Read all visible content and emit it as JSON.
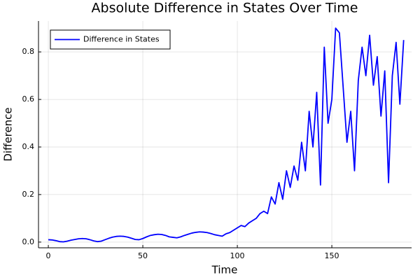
{
  "chart_data": {
    "type": "line",
    "title": "Absolute Difference in States Over Time",
    "x_label": "Time",
    "y_label": "Difference",
    "x": [
      0,
      2,
      4,
      6,
      8,
      10,
      12,
      14,
      16,
      18,
      20,
      22,
      24,
      26,
      28,
      30,
      32,
      34,
      36,
      38,
      40,
      42,
      44,
      46,
      48,
      50,
      52,
      54,
      56,
      58,
      60,
      62,
      64,
      66,
      68,
      70,
      72,
      74,
      76,
      78,
      80,
      82,
      84,
      86,
      88,
      90,
      92,
      94,
      96,
      98,
      100,
      102,
      104,
      106,
      108,
      110,
      112,
      114,
      116,
      118,
      120,
      122,
      124,
      126,
      128,
      130,
      132,
      134,
      136,
      138,
      140,
      142,
      144,
      146,
      148,
      150,
      152,
      154,
      156,
      158,
      160,
      162,
      164,
      166,
      168,
      170,
      172,
      174,
      176,
      178,
      180,
      182,
      184,
      186,
      188
    ],
    "series": [
      {
        "name": "Difference in States",
        "color": "#0000ff",
        "values": [
          0.01,
          0.009,
          0.006,
          0.002,
          0.001,
          0.004,
          0.008,
          0.011,
          0.014,
          0.015,
          0.014,
          0.01,
          0.005,
          0.002,
          0.004,
          0.01,
          0.016,
          0.021,
          0.024,
          0.025,
          0.024,
          0.021,
          0.016,
          0.011,
          0.01,
          0.015,
          0.022,
          0.028,
          0.031,
          0.033,
          0.032,
          0.028,
          0.022,
          0.02,
          0.018,
          0.022,
          0.028,
          0.033,
          0.038,
          0.041,
          0.043,
          0.042,
          0.04,
          0.036,
          0.031,
          0.028,
          0.025,
          0.035,
          0.04,
          0.05,
          0.06,
          0.07,
          0.065,
          0.08,
          0.09,
          0.1,
          0.12,
          0.13,
          0.12,
          0.19,
          0.16,
          0.25,
          0.18,
          0.3,
          0.23,
          0.32,
          0.26,
          0.42,
          0.3,
          0.55,
          0.4,
          0.63,
          0.24,
          0.82,
          0.5,
          0.6,
          0.9,
          0.88,
          0.65,
          0.42,
          0.55,
          0.3,
          0.68,
          0.82,
          0.7,
          0.87,
          0.66,
          0.78,
          0.53,
          0.72,
          0.25,
          0.7,
          0.84,
          0.58,
          0.85
        ]
      }
    ],
    "xlim": [
      -5.2,
      192.2
    ],
    "xticks": [
      0,
      50,
      100,
      150
    ],
    "ylim": [
      -0.024,
      0.93
    ],
    "yticks": [
      {
        "value": 0,
        "label": "0.0"
      },
      0.2,
      0.4,
      0.6,
      0.8
    ],
    "grid": true,
    "legend": "top-left"
  }
}
